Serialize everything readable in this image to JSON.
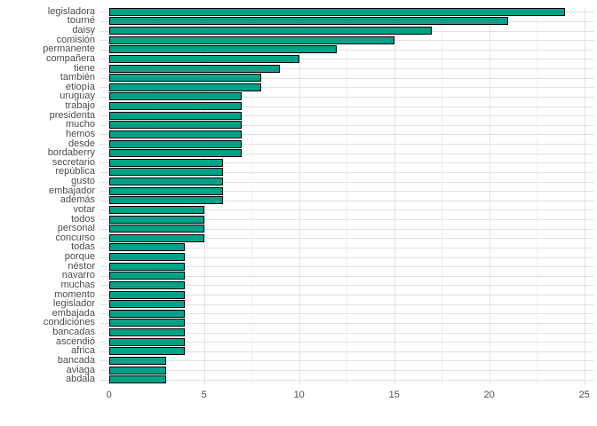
{
  "chart_data": {
    "type": "bar",
    "orientation": "horizontal",
    "title": "",
    "xlabel": "",
    "ylabel": "",
    "legend": "none",
    "grid": "on",
    "xlim": [
      0,
      25
    ],
    "x_ticks": [
      0,
      5,
      10,
      15,
      20,
      25
    ],
    "x_minor_ticks": [
      2.5,
      7.5,
      12.5,
      17.5,
      22.5
    ],
    "categories": [
      "legisladora",
      "tourné",
      "daisy",
      "comisión",
      "permanente",
      "compañera",
      "tiene",
      "también",
      "etiopía",
      "uruguay",
      "trabajo",
      "presidenta",
      "mucho",
      "hemos",
      "desde",
      "bordaberry",
      "secretario",
      "república",
      "gusto",
      "embajador",
      "además",
      "votar",
      "todos",
      "personal",
      "concurso",
      "todas",
      "porque",
      "néstor",
      "navarro",
      "muchas",
      "momento",
      "legislador",
      "embajada",
      "condiciones",
      "bancadas",
      "ascendió",
      "africa",
      "bancada",
      "aviaga",
      "abdala"
    ],
    "values": [
      24,
      21,
      17,
      15,
      12,
      10,
      9,
      8,
      8,
      7,
      7,
      7,
      7,
      7,
      7,
      7,
      6,
      6,
      6,
      6,
      6,
      5,
      5,
      5,
      5,
      4,
      4,
      4,
      4,
      4,
      4,
      4,
      4,
      4,
      4,
      4,
      4,
      3,
      3,
      3
    ],
    "colors": {
      "bar_fill": "#00a287",
      "bar_border": "#000000",
      "axis_text": "#4d4d4d",
      "grid_major": "#e2e2e2",
      "grid_minor": "#f0f0f0",
      "background": "#ffffff"
    }
  }
}
